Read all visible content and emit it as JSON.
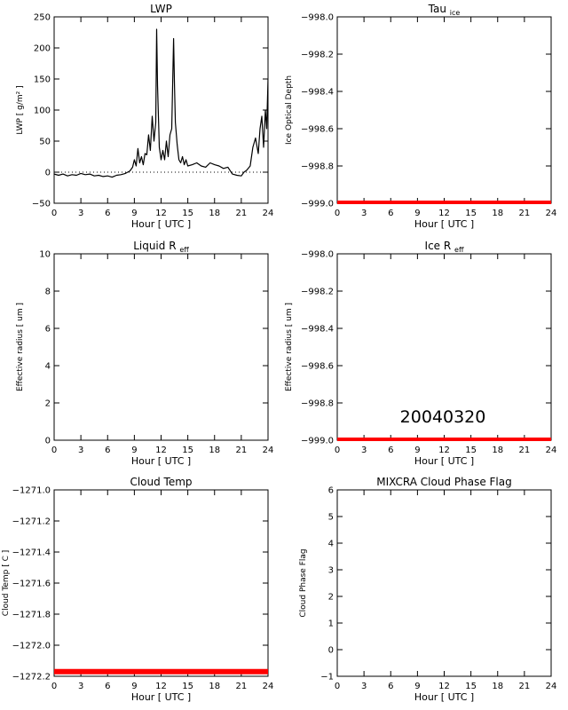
{
  "date_stamp": "20040320",
  "chart_data": [
    {
      "type": "line",
      "title": "LWP",
      "xlabel": "Hour [ UTC ]",
      "ylabel": "LWP [ g/m² ]",
      "xlim": [
        0,
        24
      ],
      "ylim": [
        -50,
        250
      ],
      "xticks": [
        0,
        3,
        6,
        9,
        12,
        15,
        18,
        21,
        24
      ],
      "yticks": [
        -50,
        0,
        50,
        100,
        150,
        200,
        250
      ],
      "zero_line": "dotted",
      "series": [
        {
          "color": "#000000",
          "x": [
            0,
            0.5,
            1,
            1.5,
            2,
            2.5,
            3,
            3.5,
            4,
            4.5,
            5,
            5.5,
            6,
            6.5,
            7,
            7.5,
            8,
            8.5,
            8.8,
            9,
            9.2,
            9.4,
            9.6,
            9.8,
            10,
            10.2,
            10.4,
            10.6,
            10.8,
            11,
            11.2,
            11.4,
            11.5,
            11.6,
            11.7,
            11.8,
            12,
            12.2,
            12.4,
            12.6,
            12.8,
            13,
            13.2,
            13.4,
            13.5,
            13.6,
            13.8,
            14,
            14.2,
            14.4,
            14.6,
            14.8,
            15,
            15.5,
            16,
            16.5,
            17,
            17.5,
            18,
            18.5,
            19,
            19.5,
            20,
            20.5,
            21,
            21.3,
            21.6,
            22,
            22.3,
            22.6,
            22.9,
            23.1,
            23.3,
            23.5,
            23.7,
            23.85,
            24
          ],
          "y": [
            -3,
            -5,
            -3,
            -6,
            -4,
            -5,
            -2,
            -4,
            -3,
            -6,
            -5,
            -7,
            -6,
            -8,
            -5,
            -4,
            -2,
            2,
            8,
            20,
            10,
            38,
            15,
            25,
            12,
            30,
            28,
            60,
            35,
            90,
            50,
            80,
            230,
            140,
            90,
            40,
            20,
            35,
            20,
            50,
            25,
            60,
            70,
            215,
            140,
            80,
            45,
            20,
            15,
            25,
            12,
            20,
            10,
            12,
            15,
            10,
            8,
            15,
            12,
            10,
            6,
            8,
            -3,
            -5,
            -6,
            0,
            3,
            10,
            40,
            55,
            30,
            70,
            90,
            40,
            100,
            70,
            150
          ]
        }
      ]
    },
    {
      "type": "line",
      "title": "Tau_ice",
      "xlabel": "Hour [ UTC ]",
      "ylabel": "Ice Optical Depth",
      "xlim": [
        0,
        24
      ],
      "ylim": [
        -999.0,
        -998.0
      ],
      "xticks": [
        0,
        3,
        6,
        9,
        12,
        15,
        18,
        21,
        24
      ],
      "yticks": [
        -999.0,
        -998.8,
        -998.6,
        -998.4,
        -998.2,
        -998.0
      ],
      "series": [
        {
          "color": "#ff0000",
          "x": [
            0,
            24
          ],
          "y": [
            -999.0,
            -999.0
          ]
        }
      ]
    },
    {
      "type": "line",
      "title": "Liquid R_eff",
      "xlabel": "Hour [ UTC ]",
      "ylabel": "Effective radius [ um ]",
      "xlim": [
        0,
        24
      ],
      "ylim": [
        0,
        10
      ],
      "xticks": [
        0,
        3,
        6,
        9,
        12,
        15,
        18,
        21,
        24
      ],
      "yticks": [
        0,
        2,
        4,
        6,
        8,
        10
      ],
      "series": []
    },
    {
      "type": "line",
      "title": "Ice R_eff",
      "xlabel": "Hour [ UTC ]",
      "ylabel": "Effective radius [ um ]",
      "xlim": [
        0,
        24
      ],
      "ylim": [
        -999.0,
        -998.0
      ],
      "xticks": [
        0,
        3,
        6,
        9,
        12,
        15,
        18,
        21,
        24
      ],
      "yticks": [
        -999.0,
        -998.8,
        -998.6,
        -998.4,
        -998.2,
        -998.0
      ],
      "series": [
        {
          "color": "#ff0000",
          "x": [
            0,
            24
          ],
          "y": [
            -999.0,
            -999.0
          ]
        }
      ]
    },
    {
      "type": "line",
      "title": "Cloud Temp",
      "xlabel": "Hour [ UTC ]",
      "ylabel": "Cloud Temp [ C ]",
      "xlim": [
        0,
        24
      ],
      "ylim": [
        -1272.2,
        -1271.0
      ],
      "xticks": [
        0,
        3,
        6,
        9,
        12,
        15,
        18,
        21,
        24
      ],
      "yticks": [
        -1272.2,
        -1272.0,
        -1271.8,
        -1271.6,
        -1271.4,
        -1271.2,
        -1271.0
      ],
      "series": [
        {
          "color": "#ff0000",
          "x": [
            0,
            24
          ],
          "y": [
            -1272.17,
            -1272.17
          ]
        }
      ]
    },
    {
      "type": "line",
      "title": "MIXCRA Cloud Phase Flag",
      "xlabel": "Hour [ UTC ]",
      "ylabel": "Cloud Phase Flag",
      "xlim": [
        0,
        24
      ],
      "ylim": [
        -1,
        6
      ],
      "xticks": [
        0,
        3,
        6,
        9,
        12,
        15,
        18,
        21,
        24
      ],
      "yticks": [
        -1,
        0,
        1,
        2,
        3,
        4,
        5,
        6
      ],
      "series": []
    }
  ]
}
